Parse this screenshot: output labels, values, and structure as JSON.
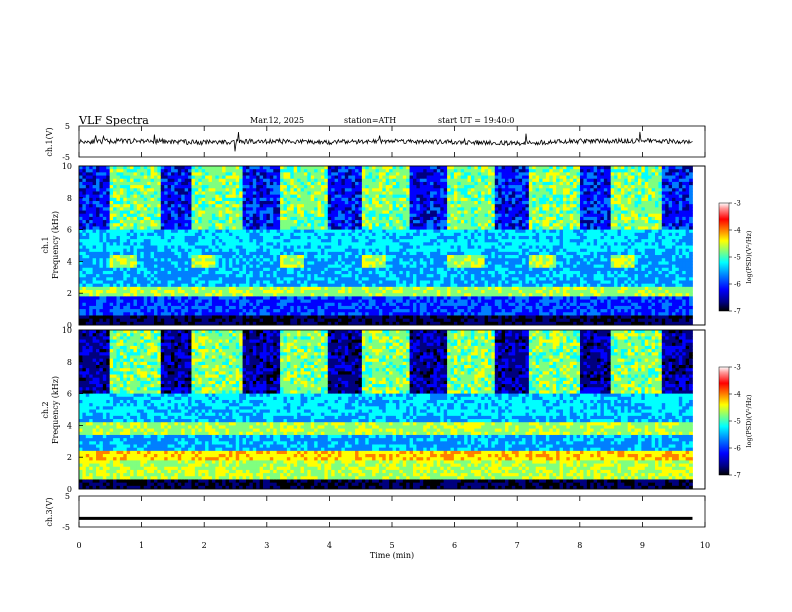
{
  "header": {
    "title": "VLF  Spectra",
    "date": "Mar.12, 2025",
    "station": "station=ATH",
    "start": "start  UT  =   19:40:0"
  },
  "colors": {
    "colormap": [
      "#000000",
      "#00007f",
      "#0000ff",
      "#007fff",
      "#00ffff",
      "#7fff7f",
      "#ffff00",
      "#ff7f00",
      "#ff0000",
      "#ff9999",
      "#ffffff"
    ],
    "trace": "#000000"
  },
  "chart_data": [
    {
      "type": "line",
      "panel": "ch1-waveform",
      "ylabel": "ch.1(V)",
      "ylim": [
        -5,
        5
      ],
      "yticks": [
        "5",
        "-5"
      ],
      "x": [
        0,
        1,
        2,
        3,
        4,
        5,
        6,
        7,
        8,
        9,
        9.8
      ],
      "y": [
        0,
        0.2,
        -0.3,
        0.1,
        -0.2,
        0.2,
        -0.3,
        -0.5,
        0.1,
        0.2,
        0
      ]
    },
    {
      "type": "heatmap",
      "panel": "ch1-spectrogram",
      "channel_label": "ch.1",
      "ylabel": "Frequency  (kHz)",
      "ylim": [
        0,
        10
      ],
      "yticks": [
        "0",
        "2",
        "4",
        "6",
        "8",
        "10"
      ],
      "xlim": [
        0,
        10
      ],
      "data_end_min": 9.8,
      "tone_bands_khz": [
        4.0
      ],
      "tone_on_min": [
        [
          0.5,
          0.95
        ],
        [
          1.8,
          2.2
        ],
        [
          3.2,
          3.6
        ],
        [
          4.5,
          4.9
        ],
        [
          5.9,
          6.5
        ],
        [
          7.2,
          7.6
        ],
        [
          8.5,
          8.9
        ]
      ],
      "colorbar": {
        "label": "log(PSD)(V²/Hz)",
        "range": [
          -7,
          -3
        ],
        "ticks": [
          "-3",
          "-4",
          "-5",
          "-6",
          "-7"
        ]
      }
    },
    {
      "type": "heatmap",
      "panel": "ch2-spectrogram",
      "channel_label": "ch.2",
      "ylabel": "Frequency  (kHz)",
      "ylim": [
        0,
        10
      ],
      "yticks": [
        "0",
        "2",
        "4",
        "6",
        "8",
        "10"
      ],
      "xlim": [
        0,
        10
      ],
      "data_end_min": 9.8,
      "tone_bands_khz": [
        3.8
      ],
      "tone_on_min": [
        [
          0.5,
          0.95
        ],
        [
          1.8,
          2.2
        ],
        [
          3.2,
          3.6
        ],
        [
          4.5,
          4.9
        ],
        [
          5.9,
          6.5
        ],
        [
          7.2,
          7.6
        ],
        [
          8.5,
          8.9
        ]
      ],
      "colorbar": {
        "label": "log(PSD)(V²/Hz)",
        "range": [
          -7,
          -3
        ],
        "ticks": [
          "-3",
          "-4",
          "-5",
          "-6",
          "-7"
        ]
      }
    },
    {
      "type": "line",
      "panel": "ch3-waveform",
      "ylabel": "ch.3(V)",
      "ylim": [
        -5,
        5
      ],
      "yticks": [
        "5",
        "-5"
      ],
      "x": [
        0,
        9.8
      ],
      "y": [
        -2.2,
        -2.2
      ]
    }
  ],
  "xaxis": {
    "label": "Time  (min)",
    "ticks": [
      "0",
      "1",
      "2",
      "3",
      "4",
      "5",
      "6",
      "7",
      "8",
      "9",
      "10"
    ]
  }
}
